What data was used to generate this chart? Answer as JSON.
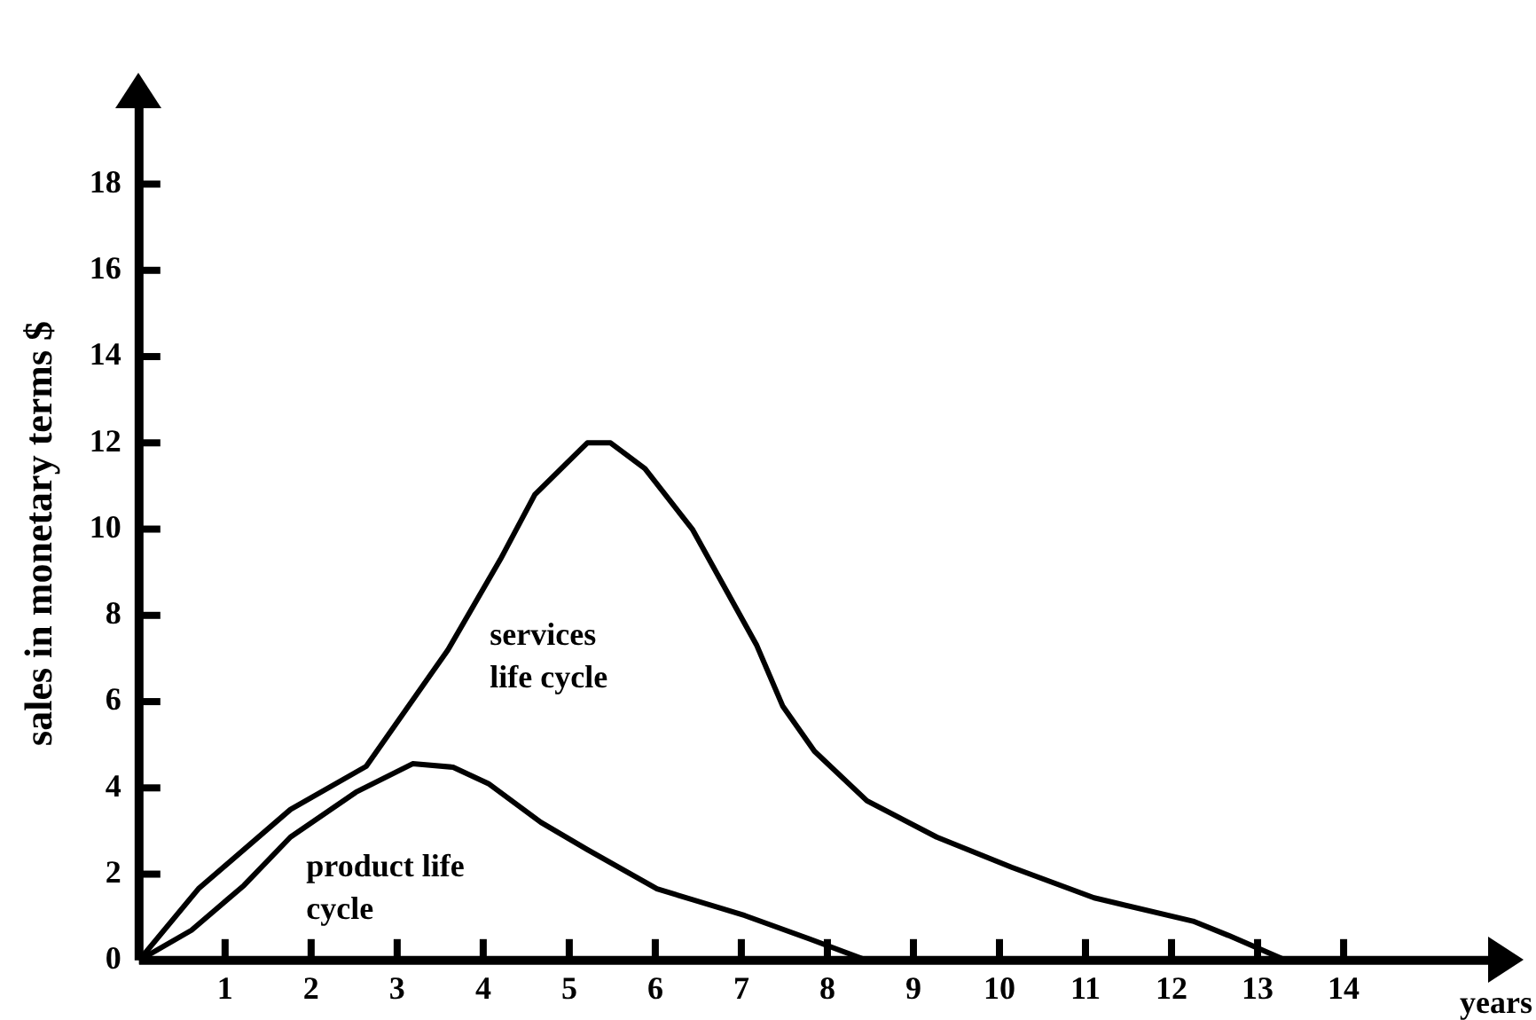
{
  "chart_data": {
    "type": "line",
    "xlabel": "years",
    "ylabel": "sales in monetary terms $",
    "xlim": [
      0,
      15.7
    ],
    "ylim": [
      0,
      19.8
    ],
    "xticks": [
      1,
      2,
      3,
      4,
      5,
      6,
      7,
      8,
      9,
      10,
      11,
      12,
      13,
      14
    ],
    "yticks": [
      0,
      2,
      4,
      6,
      8,
      10,
      12,
      14,
      16,
      18
    ],
    "grid": false,
    "legend": false,
    "marker": "none",
    "line_style": "solid",
    "series": [
      {
        "name": "services\nlife cycle",
        "color": "#000000",
        "x": [
          0,
          0.69,
          1.76,
          2.64,
          3.59,
          4.2,
          4.6,
          5.21,
          5.48,
          5.88,
          6.43,
          7.18,
          7.48,
          7.85,
          8.46,
          9.27,
          10.14,
          11.1,
          12.25,
          12.66,
          13.33
        ],
        "values": [
          0,
          1.66,
          3.5,
          4.5,
          7.2,
          9.3,
          10.8,
          12.0,
          12.0,
          11.4,
          10.0,
          7.3,
          5.9,
          4.85,
          3.7,
          2.86,
          2.16,
          1.45,
          0.91,
          0.58,
          0
        ]
      },
      {
        "name": "product life\ncycle",
        "color": "#000000",
        "x": [
          0,
          0.61,
          1.22,
          1.76,
          2.52,
          3.18,
          3.65,
          4.06,
          4.67,
          5.21,
          6.02,
          7.04,
          7.79,
          8.46
        ],
        "values": [
          0,
          0.7,
          1.74,
          2.86,
          3.9,
          4.56,
          4.48,
          4.1,
          3.2,
          2.57,
          1.66,
          1.04,
          0.5,
          0
        ]
      }
    ]
  }
}
